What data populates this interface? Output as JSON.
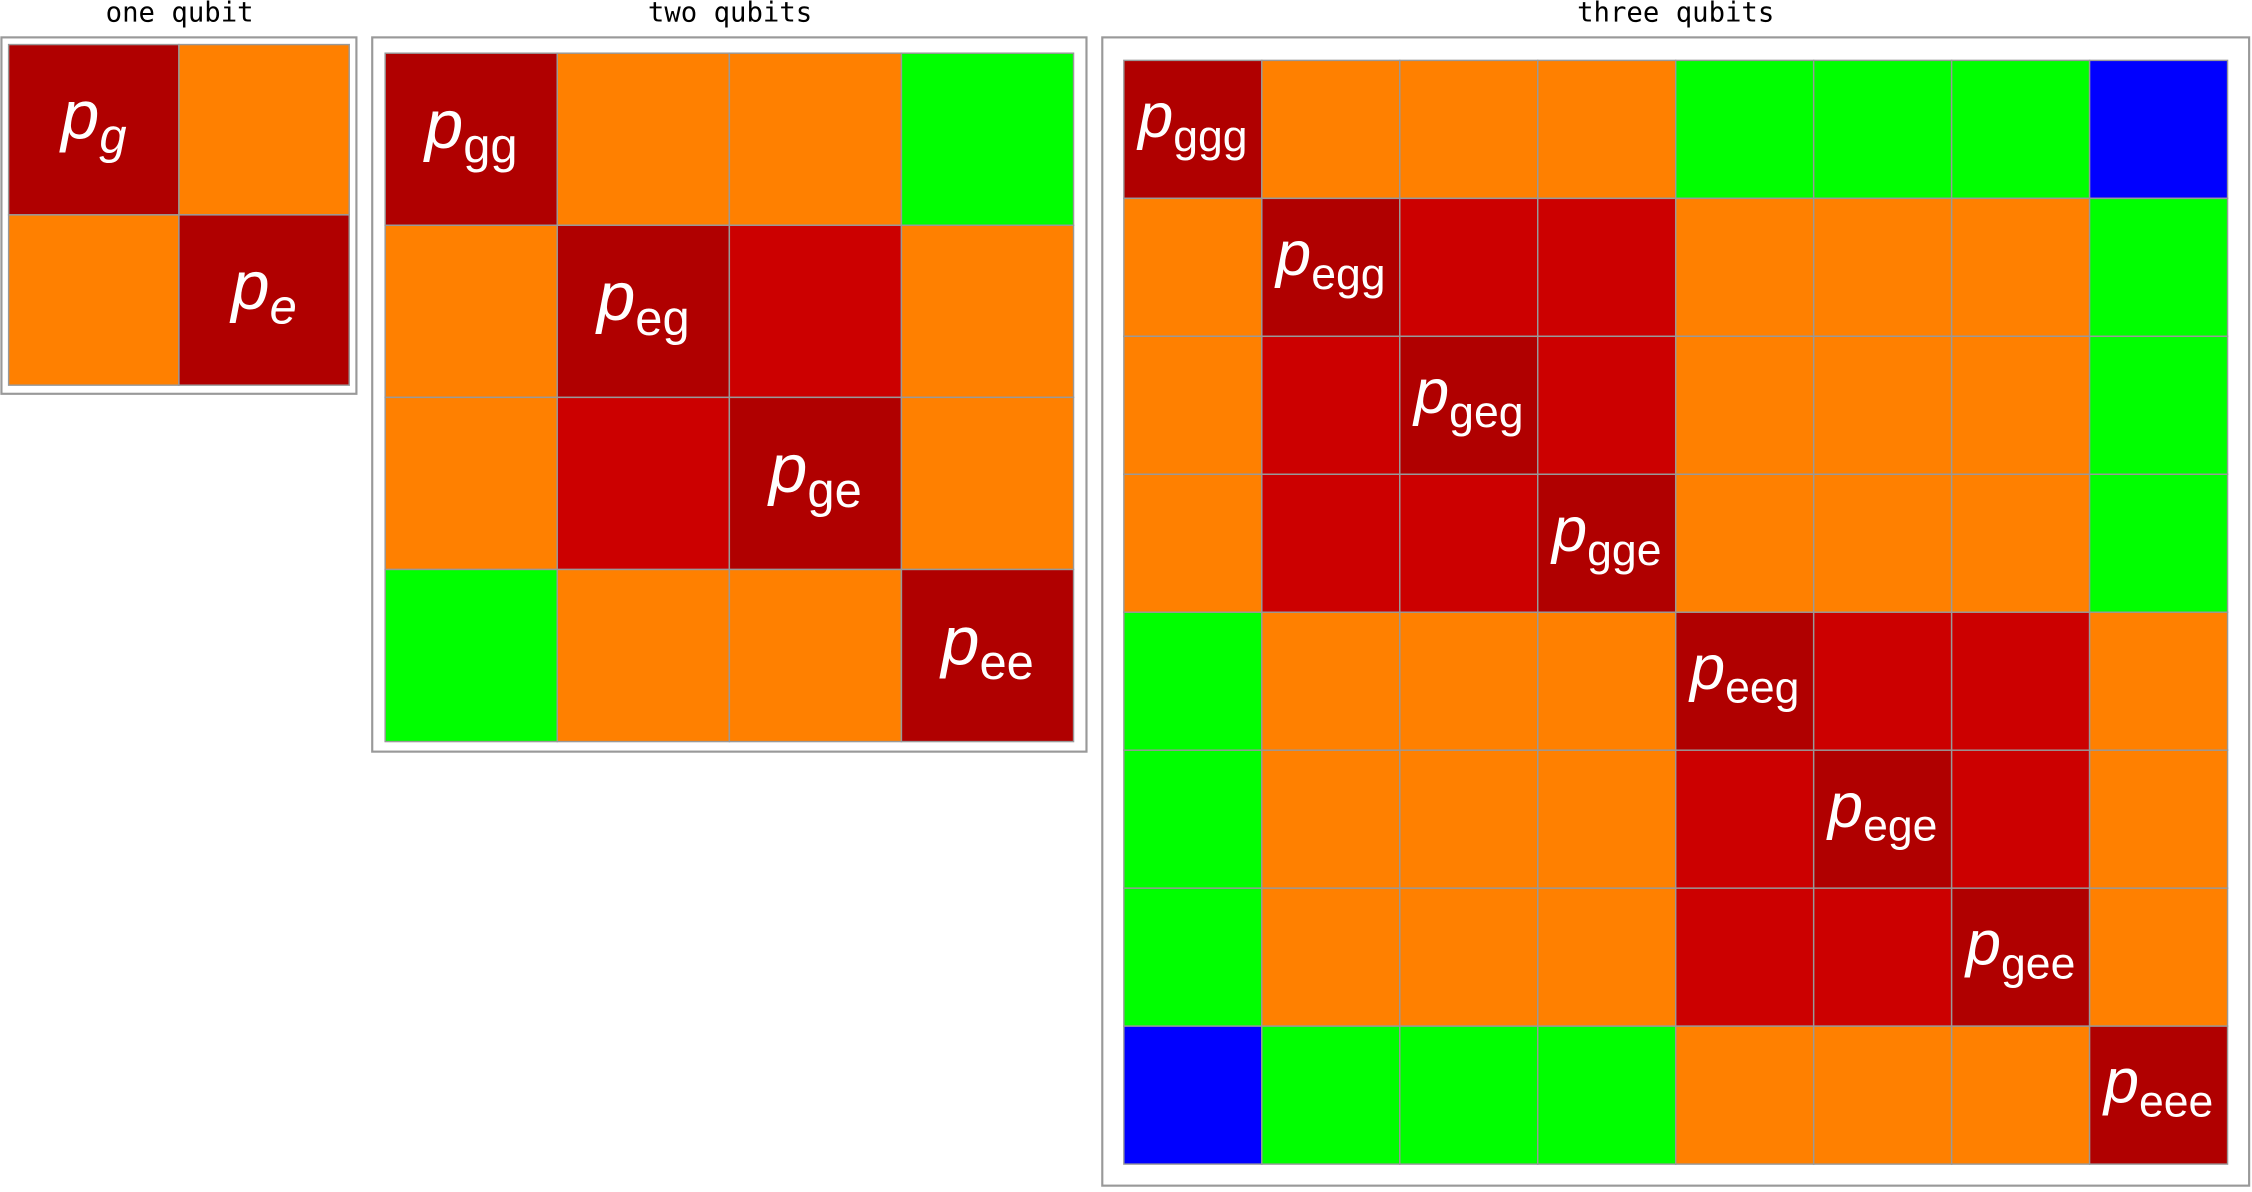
{
  "colors": {
    "diagonal": "#b00000",
    "same_excitation": "#cc0000",
    "excitation_difference": [
      "#ff8000",
      "#00ff00",
      "#0000ff"
    ]
  },
  "panels": [
    {
      "title": "one qubit",
      "italic_subscript": true,
      "diagonal": [
        {
          "symbol": "p",
          "subscript": "g"
        },
        {
          "symbol": "p",
          "subscript": "e"
        }
      ]
    },
    {
      "title": "two qubits",
      "italic_subscript": false,
      "diagonal": [
        {
          "symbol": "p",
          "subscript": "gg"
        },
        {
          "symbol": "p",
          "subscript": "eg"
        },
        {
          "symbol": "p",
          "subscript": "ge"
        },
        {
          "symbol": "p",
          "subscript": "ee"
        }
      ]
    },
    {
      "title": "three qubits",
      "italic_subscript": false,
      "diagonal": [
        {
          "symbol": "p",
          "subscript": "ggg"
        },
        {
          "symbol": "p",
          "subscript": "egg"
        },
        {
          "symbol": "p",
          "subscript": "geg"
        },
        {
          "symbol": "p",
          "subscript": "gge"
        },
        {
          "symbol": "p",
          "subscript": "eeg"
        },
        {
          "symbol": "p",
          "subscript": "ege"
        },
        {
          "symbol": "p",
          "subscript": "gee"
        },
        {
          "symbol": "p",
          "subscript": "eee"
        }
      ]
    }
  ]
}
